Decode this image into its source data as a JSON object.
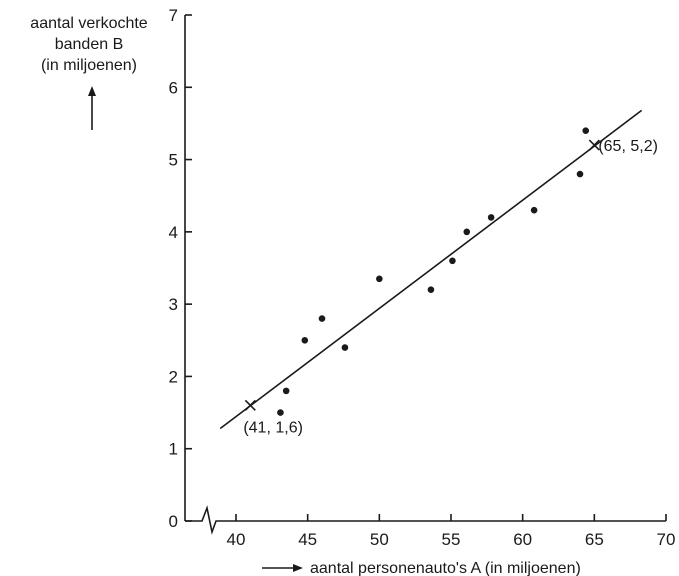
{
  "chart_data": {
    "type": "scatter",
    "ylabel_lines": [
      "aantal verkochte",
      "banden B",
      "(in miljoenen)"
    ],
    "xlabel": "aantal personenauto's A (in miljoenen)",
    "xlim": [
      38,
      70
    ],
    "ylim": [
      0,
      7
    ],
    "xticks": [
      40,
      45,
      50,
      55,
      60,
      65,
      70
    ],
    "yticks": [
      0,
      1,
      2,
      3,
      4,
      5,
      6,
      7
    ],
    "x_axis_break": true,
    "grid": false,
    "points": [
      {
        "x": 43.1,
        "y": 1.5
      },
      {
        "x": 43.5,
        "y": 1.8
      },
      {
        "x": 44.8,
        "y": 2.5
      },
      {
        "x": 46.0,
        "y": 2.8
      },
      {
        "x": 47.6,
        "y": 2.4
      },
      {
        "x": 50.0,
        "y": 3.35
      },
      {
        "x": 53.6,
        "y": 3.2
      },
      {
        "x": 55.1,
        "y": 3.6
      },
      {
        "x": 56.1,
        "y": 4.0
      },
      {
        "x": 57.8,
        "y": 4.2
      },
      {
        "x": 60.8,
        "y": 4.3
      },
      {
        "x": 64.0,
        "y": 4.8
      },
      {
        "x": 64.4,
        "y": 5.4
      }
    ],
    "fit_line": {
      "x1": 38.9,
      "y1": 1.28,
      "x2": 68.3,
      "y2": 5.68
    },
    "marked_points": [
      {
        "x": 41,
        "y": 1.6,
        "label": "(41, 1,6)"
      },
      {
        "x": 65,
        "y": 5.2,
        "label": "(65, 5,2)"
      }
    ]
  }
}
